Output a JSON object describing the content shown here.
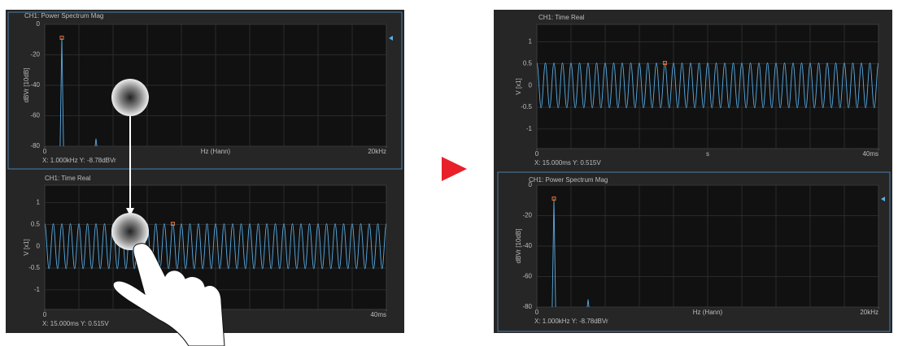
{
  "chart_data": [
    {
      "type": "line",
      "title": "CH1: Power Spectrum Mag",
      "y_label": "dBVr [10dB]",
      "x_label": "Hz (Hann)",
      "xlim": [
        0,
        20
      ],
      "ylim": [
        -80,
        0
      ],
      "xticks": [
        0,
        {
          "value": 20,
          "label": "20kHz"
        }
      ],
      "yticks": [
        0,
        -20,
        -40,
        -60,
        -80
      ],
      "series": [
        {
          "color": "#5aaee6",
          "x": [
            0.9,
            0.95,
            1,
            1.05,
            1.1,
            null,
            2.95,
            3,
            3.05
          ],
          "values": [
            -80,
            -45,
            -8.78,
            -45,
            -80,
            null,
            -80,
            -75,
            -80
          ]
        }
      ],
      "cursor": {
        "x": 1,
        "y": -8.78,
        "label": "X: 1.000kHz Y: -8.78dBVr"
      }
    },
    {
      "type": "line",
      "title": "CH1: Time Real",
      "y_label": "V [x1]",
      "xlim": [
        0,
        40
      ],
      "ylim": [
        -1.45,
        1.4
      ],
      "xticks": [
        0,
        {
          "value": 40,
          "label": "40ms"
        }
      ],
      "yticks": [
        1,
        0.5,
        0,
        -0.5,
        -1
      ],
      "series": [
        {
          "color": "#5aaee6",
          "x": [
            0,
            0.5,
            1,
            1.5,
            2,
            2.5,
            3,
            3.5,
            4,
            4.5,
            5,
            5.5,
            6,
            6.5,
            7,
            7.5,
            8,
            8.5,
            9,
            9.5,
            10,
            10.5,
            11,
            11.5,
            12,
            12.5,
            13,
            13.5,
            14,
            14.5,
            15,
            15.5,
            16,
            16.5,
            17,
            17.5,
            18,
            18.5,
            19,
            19.5,
            20,
            20.5,
            21,
            21.5,
            22,
            22.5,
            23,
            23.5,
            24,
            24.5,
            25,
            25.5,
            26,
            26.5,
            27,
            27.5,
            28,
            28.5,
            29,
            29.5,
            30,
            30.5,
            31,
            31.5,
            32,
            32.5,
            33,
            33.5,
            34,
            34.5,
            35,
            35.5,
            36,
            36.5,
            37,
            37.5,
            38,
            38.5,
            39,
            39.5,
            40
          ],
          "values": [
            0.515,
            -0.515,
            0.515,
            -0.515,
            0.515,
            -0.515,
            0.515,
            -0.515,
            0.515,
            -0.515,
            0.515,
            -0.515,
            0.515,
            -0.515,
            0.515,
            -0.515,
            0.515,
            -0.515,
            0.515,
            -0.515,
            0.515,
            -0.515,
            0.515,
            -0.515,
            0.515,
            -0.515,
            0.515,
            -0.515,
            0.515,
            -0.515,
            0.515,
            -0.515,
            0.515,
            -0.515,
            0.515,
            -0.515,
            0.515,
            -0.515,
            0.515,
            -0.515,
            0.515,
            -0.515,
            0.515,
            -0.515,
            0.515,
            -0.515,
            0.515,
            -0.515,
            0.515,
            -0.515,
            0.515,
            -0.515,
            0.515,
            -0.515,
            0.515,
            -0.515,
            0.515,
            -0.515,
            0.515,
            -0.515,
            0.515,
            -0.515,
            0.515,
            -0.515,
            0.515,
            -0.515,
            0.515,
            -0.515,
            0.515,
            -0.515,
            0.515,
            -0.515,
            0.515,
            -0.515,
            0.515,
            -0.515,
            0.515,
            -0.515,
            0.515,
            -0.515,
            0.515
          ]
        }
      ],
      "cursor": {
        "x": 15,
        "y": 0.515,
        "label": "X: 15.000ms Y: 0.515V"
      }
    },
    {
      "type": "line",
      "title": "CH1: Time Real",
      "y_label": "V [x1]",
      "x_label": "s",
      "xlim": [
        0,
        40
      ],
      "ylim": [
        -1.45,
        1.4
      ],
      "xticks": [
        0,
        {
          "value": 40,
          "label": "40ms"
        }
      ],
      "yticks": [
        1,
        0.5,
        0,
        -0.5,
        -1
      ],
      "series": [
        {
          "color": "#5aaee6",
          "x": [
            0,
            0.5,
            1,
            1.5,
            2,
            2.5,
            3,
            3.5,
            4,
            4.5,
            5,
            5.5,
            6,
            6.5,
            7,
            7.5,
            8,
            8.5,
            9,
            9.5,
            10,
            10.5,
            11,
            11.5,
            12,
            12.5,
            13,
            13.5,
            14,
            14.5,
            15,
            15.5,
            16,
            16.5,
            17,
            17.5,
            18,
            18.5,
            19,
            19.5,
            20,
            20.5,
            21,
            21.5,
            22,
            22.5,
            23,
            23.5,
            24,
            24.5,
            25,
            25.5,
            26,
            26.5,
            27,
            27.5,
            28,
            28.5,
            29,
            29.5,
            30,
            30.5,
            31,
            31.5,
            32,
            32.5,
            33,
            33.5,
            34,
            34.5,
            35,
            35.5,
            36,
            36.5,
            37,
            37.5,
            38,
            38.5,
            39,
            39.5,
            40
          ],
          "values": [
            0.515,
            -0.515,
            0.515,
            -0.515,
            0.515,
            -0.515,
            0.515,
            -0.515,
            0.515,
            -0.515,
            0.515,
            -0.515,
            0.515,
            -0.515,
            0.515,
            -0.515,
            0.515,
            -0.515,
            0.515,
            -0.515,
            0.515,
            -0.515,
            0.515,
            -0.515,
            0.515,
            -0.515,
            0.515,
            -0.515,
            0.515,
            -0.515,
            0.515,
            -0.515,
            0.515,
            -0.515,
            0.515,
            -0.515,
            0.515,
            -0.515,
            0.515,
            -0.515,
            0.515,
            -0.515,
            0.515,
            -0.515,
            0.515,
            -0.515,
            0.515,
            -0.515,
            0.515,
            -0.515,
            0.515,
            -0.515,
            0.515,
            -0.515,
            0.515,
            -0.515,
            0.515,
            -0.515,
            0.515,
            -0.515,
            0.515,
            -0.515,
            0.515,
            -0.515,
            0.515,
            -0.515,
            0.515,
            -0.515,
            0.515,
            -0.515,
            0.515,
            -0.515,
            0.515,
            -0.515,
            0.515,
            -0.515,
            0.515,
            -0.515,
            0.515,
            -0.515,
            0.515
          ]
        }
      ],
      "cursor": {
        "x": 15,
        "y": 0.515,
        "label": "X: 15.000ms Y: 0.515V"
      }
    },
    {
      "type": "line",
      "title": "CH1: Power Spectrum Mag",
      "y_label": "dBVr [10dB]",
      "x_label": "Hz (Hann)",
      "xlim": [
        0,
        20
      ],
      "ylim": [
        -80,
        0
      ],
      "xticks": [
        0,
        {
          "value": 20,
          "label": "20kHz"
        }
      ],
      "yticks": [
        0,
        -20,
        -40,
        -60,
        -80
      ],
      "series": [
        {
          "color": "#5aaee6",
          "x": [
            0.9,
            0.95,
            1,
            1.05,
            1.1,
            null,
            2.95,
            3,
            3.05
          ],
          "values": [
            -80,
            -45,
            -8.78,
            -45,
            -80,
            null,
            -80,
            -75,
            -80
          ]
        }
      ],
      "cursor": {
        "x": 1,
        "y": -8.78,
        "label": "X: 1.000kHz Y: -8.78dBVr"
      }
    }
  ]
}
